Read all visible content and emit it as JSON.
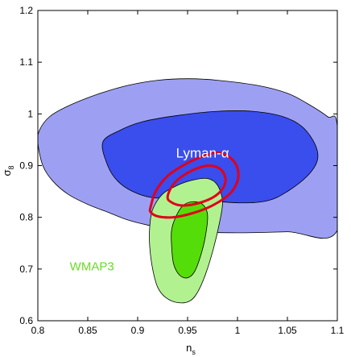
{
  "chart_data": {
    "type": "contour",
    "xlabel": "n",
    "xlabel_sub": "s",
    "ylabel": "σ",
    "ylabel_sub": "8",
    "xlim": [
      0.8,
      1.1
    ],
    "ylim": [
      0.6,
      1.2
    ],
    "xticks": [
      "0.8",
      "0.85",
      "0.9",
      "0.95",
      "1",
      "1.05",
      "1.1"
    ],
    "yticks": [
      "0.6",
      "0.7",
      "0.8",
      "0.9",
      "1",
      "1.1",
      "1.2"
    ],
    "grid": false,
    "annotations": [
      {
        "text": "Lyman-α",
        "x": 0.965,
        "y": 0.925,
        "color": "#ffffff"
      },
      {
        "text": "WMAP3",
        "x": 0.832,
        "y": 0.705,
        "color": "#66dd22"
      }
    ],
    "regions": [
      {
        "id": "lyman-alpha-95",
        "fill": "#9da0f2",
        "points": [
          [
            0.8,
            0.945
          ],
          [
            0.805,
            0.9
          ],
          [
            0.815,
            0.87
          ],
          [
            0.83,
            0.845
          ],
          [
            0.85,
            0.825
          ],
          [
            0.87,
            0.81
          ],
          [
            0.89,
            0.795
          ],
          [
            0.91,
            0.785
          ],
          [
            0.93,
            0.778
          ],
          [
            0.96,
            0.772
          ],
          [
            1.0,
            0.77
          ],
          [
            1.05,
            0.772
          ],
          [
            1.1,
            0.775
          ],
          [
            1.1,
            0.975
          ],
          [
            1.09,
            0.995
          ],
          [
            1.07,
            1.02
          ],
          [
            1.05,
            1.04
          ],
          [
            1.02,
            1.055
          ],
          [
            0.98,
            1.065
          ],
          [
            0.95,
            1.068
          ],
          [
            0.92,
            1.065
          ],
          [
            0.89,
            1.055
          ],
          [
            0.86,
            1.038
          ],
          [
            0.83,
            1.015
          ],
          [
            0.812,
            0.995
          ],
          [
            0.802,
            0.97
          ]
        ]
      },
      {
        "id": "lyman-alpha-68",
        "fill": "#3a4ded",
        "points": [
          [
            0.865,
            0.945
          ],
          [
            0.87,
            0.9
          ],
          [
            0.88,
            0.87
          ],
          [
            0.895,
            0.85
          ],
          [
            0.915,
            0.838
          ],
          [
            0.935,
            0.84
          ],
          [
            0.95,
            0.85
          ],
          [
            0.97,
            0.835
          ],
          [
            1.0,
            0.828
          ],
          [
            1.03,
            0.832
          ],
          [
            1.05,
            0.85
          ],
          [
            1.07,
            0.88
          ],
          [
            1.08,
            0.91
          ],
          [
            1.078,
            0.94
          ],
          [
            1.065,
            0.975
          ],
          [
            1.045,
            0.995
          ],
          [
            1.015,
            1.005
          ],
          [
            0.98,
            1.005
          ],
          [
            0.94,
            0.997
          ],
          [
            0.905,
            0.985
          ],
          [
            0.882,
            0.968
          ]
        ]
      },
      {
        "id": "wmap3-95",
        "fill": "#b2f18f",
        "points": [
          [
            0.912,
            0.745
          ],
          [
            0.915,
            0.7
          ],
          [
            0.92,
            0.665
          ],
          [
            0.928,
            0.645
          ],
          [
            0.94,
            0.635
          ],
          [
            0.952,
            0.638
          ],
          [
            0.96,
            0.655
          ],
          [
            0.968,
            0.69
          ],
          [
            0.976,
            0.74
          ],
          [
            0.982,
            0.79
          ],
          [
            0.985,
            0.83
          ],
          [
            0.98,
            0.862
          ],
          [
            0.97,
            0.875
          ],
          [
            0.955,
            0.872
          ],
          [
            0.94,
            0.862
          ],
          [
            0.925,
            0.845
          ],
          [
            0.915,
            0.815
          ],
          [
            0.912,
            0.78
          ]
        ]
      },
      {
        "id": "wmap3-68",
        "fill": "#55dd0a",
        "points": [
          [
            0.934,
            0.745
          ],
          [
            0.936,
            0.71
          ],
          [
            0.942,
            0.688
          ],
          [
            0.95,
            0.683
          ],
          [
            0.957,
            0.695
          ],
          [
            0.963,
            0.725
          ],
          [
            0.968,
            0.765
          ],
          [
            0.97,
            0.805
          ],
          [
            0.965,
            0.825
          ],
          [
            0.955,
            0.83
          ],
          [
            0.945,
            0.822
          ],
          [
            0.938,
            0.8
          ],
          [
            0.934,
            0.775
          ]
        ]
      }
    ],
    "lines": [
      {
        "id": "combined-95",
        "color": "#e0001a",
        "points": [
          [
            0.913,
            0.82
          ],
          [
            0.918,
            0.85
          ],
          [
            0.93,
            0.88
          ],
          [
            0.948,
            0.903
          ],
          [
            0.965,
            0.918
          ],
          [
            0.98,
            0.925
          ],
          [
            0.993,
            0.915
          ],
          [
            1.0,
            0.895
          ],
          [
            1.0,
            0.87
          ],
          [
            0.992,
            0.845
          ],
          [
            0.975,
            0.823
          ],
          [
            0.955,
            0.808
          ],
          [
            0.935,
            0.8
          ],
          [
            0.92,
            0.802
          ],
          [
            0.913,
            0.81
          ],
          [
            0.913,
            0.82
          ]
        ]
      },
      {
        "id": "combined-68",
        "color": "#e0001a",
        "points": [
          [
            0.93,
            0.84
          ],
          [
            0.935,
            0.862
          ],
          [
            0.945,
            0.88
          ],
          [
            0.96,
            0.895
          ],
          [
            0.972,
            0.9
          ],
          [
            0.983,
            0.893
          ],
          [
            0.988,
            0.875
          ],
          [
            0.985,
            0.855
          ],
          [
            0.975,
            0.838
          ],
          [
            0.958,
            0.826
          ],
          [
            0.943,
            0.823
          ],
          [
            0.933,
            0.83
          ],
          [
            0.93,
            0.84
          ]
        ]
      }
    ]
  }
}
